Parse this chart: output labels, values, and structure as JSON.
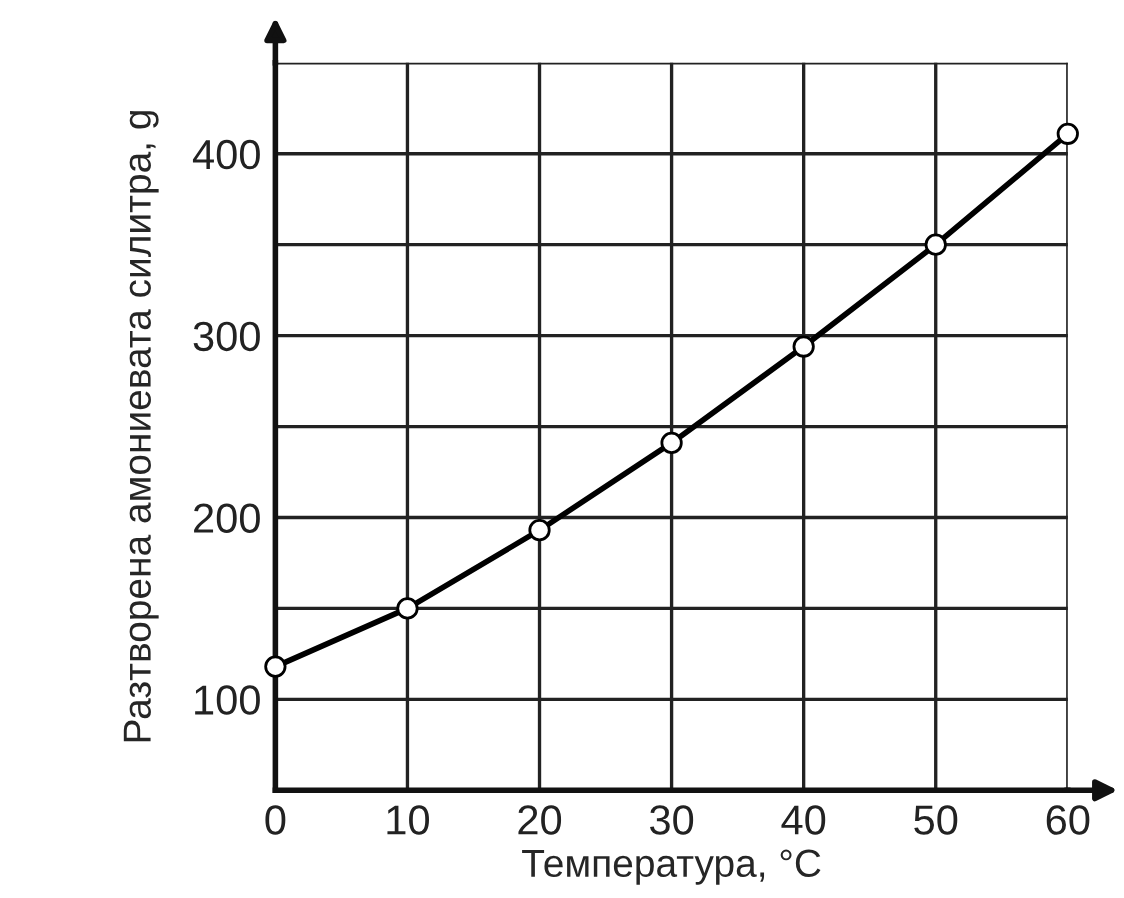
{
  "chart_data": {
    "type": "line",
    "xlabel": "Температура, °C",
    "ylabel": "Разтворена амониевата силитра, g",
    "x": [
      0,
      10,
      20,
      30,
      40,
      50,
      60
    ],
    "series": [
      {
        "color": "#000000",
        "values": [
          118,
          150,
          193,
          241,
          294,
          350,
          411
        ]
      }
    ],
    "xlim": [
      0,
      60
    ],
    "xticks": [
      0,
      10,
      20,
      30,
      40,
      50,
      60
    ],
    "ylim": [
      50,
      450
    ],
    "yticks": [
      {
        "value": 50,
        "label": null
      },
      100,
      {
        "value": 150,
        "label": null
      },
      200,
      {
        "value": 250,
        "label": null
      },
      300,
      {
        "value": 350,
        "label": null
      },
      400,
      {
        "value": 450,
        "label": null
      }
    ],
    "grid": true,
    "marker": "circle",
    "line_style": "solid",
    "legend": false
  }
}
